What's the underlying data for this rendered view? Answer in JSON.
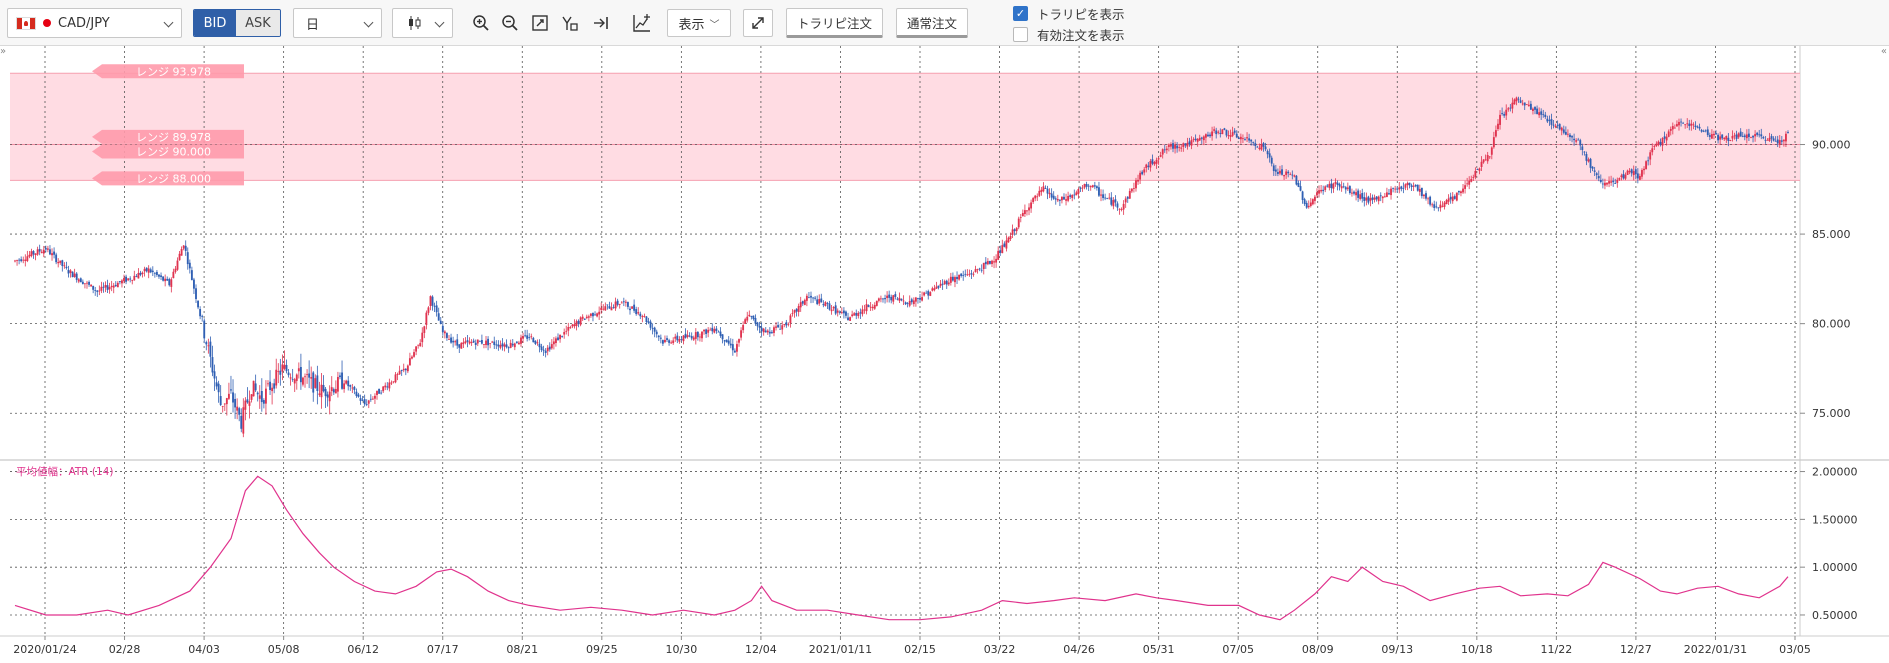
{
  "toolbar": {
    "symbol": "CAD/JPY",
    "bid_label": "BID",
    "ask_label": "ASK",
    "period": "日",
    "display_label": "表示",
    "trapi_order_label": "トラリピ注文",
    "normal_order_label": "通常注文",
    "show_trapi_label": "トラリピを表示",
    "show_trapi_checked": true,
    "show_active_orders_label": "有効注文を表示",
    "show_active_orders_checked": false,
    "icons": [
      "zoom-in-icon",
      "zoom-out-icon",
      "fit-icon",
      "trendline-tool-icon",
      "scroll-to-latest-icon",
      "indicator-add-icon"
    ]
  },
  "colors": {
    "up": "#e0334f",
    "down": "#2f5fb3",
    "range_band": "#ffd6de",
    "range_tag": "#ff9aab",
    "atr_line": "#e0338d"
  },
  "range_labels": [
    "レンジ 93.978",
    "レンジ 89.978",
    "レンジ 90.000",
    "レンジ 88.000"
  ],
  "atr_label": "平均値幅：ATR (14)",
  "chart_data": [
    {
      "type": "candlestick",
      "series_name": "CAD/JPY",
      "ylim": [
        72.5,
        95.5
      ],
      "y_ticks": [
        "90.000",
        "85.000",
        "80.000",
        "75.000"
      ],
      "y_tick_values": [
        90,
        85,
        80,
        75
      ],
      "x_labels": [
        "2020/01/24",
        "02/28",
        "04/03",
        "05/08",
        "06/12",
        "07/17",
        "08/21",
        "09/25",
        "10/30",
        "12/04",
        "2021/01/11",
        "02/15",
        "03/22",
        "04/26",
        "05/31",
        "07/05",
        "08/09",
        "09/13",
        "10/18",
        "11/22",
        "12/27",
        "2022/01/31",
        "03/05"
      ],
      "close_path": [
        [
          0,
          83.5
        ],
        [
          15,
          84.2
        ],
        [
          25,
          83.0
        ],
        [
          40,
          81.8
        ],
        [
          55,
          82.5
        ],
        [
          65,
          83.0
        ],
        [
          75,
          82.2
        ],
        [
          82,
          84.5
        ],
        [
          88,
          81.5
        ],
        [
          95,
          78.0
        ],
        [
          100,
          75.5
        ],
        [
          105,
          76.0
        ],
        [
          110,
          74.5
        ],
        [
          115,
          76.5
        ],
        [
          120,
          75.8
        ],
        [
          130,
          77.5
        ],
        [
          140,
          77.0
        ],
        [
          150,
          76.2
        ],
        [
          160,
          76.8
        ],
        [
          170,
          75.5
        ],
        [
          180,
          76.5
        ],
        [
          190,
          77.5
        ],
        [
          197,
          79.0
        ],
        [
          202,
          81.5
        ],
        [
          208,
          79.5
        ],
        [
          215,
          78.8
        ],
        [
          225,
          79.0
        ],
        [
          240,
          78.8
        ],
        [
          250,
          79.3
        ],
        [
          258,
          78.5
        ],
        [
          265,
          79.3
        ],
        [
          275,
          80.2
        ],
        [
          285,
          80.8
        ],
        [
          295,
          81.2
        ],
        [
          305,
          80.5
        ],
        [
          315,
          79.0
        ],
        [
          325,
          79.2
        ],
        [
          335,
          79.5
        ],
        [
          340,
          79.8
        ],
        [
          350,
          78.5
        ],
        [
          356,
          80.5
        ],
        [
          365,
          79.5
        ],
        [
          375,
          80.0
        ],
        [
          385,
          81.5
        ],
        [
          395,
          81.0
        ],
        [
          405,
          80.3
        ],
        [
          415,
          81.0
        ],
        [
          425,
          81.5
        ],
        [
          435,
          81.2
        ],
        [
          445,
          81.8
        ],
        [
          455,
          82.5
        ],
        [
          465,
          82.8
        ],
        [
          475,
          83.5
        ],
        [
          482,
          84.5
        ],
        [
          492,
          86.5
        ],
        [
          500,
          87.5
        ],
        [
          507,
          86.8
        ],
        [
          515,
          87.2
        ],
        [
          522,
          87.8
        ],
        [
          530,
          87.0
        ],
        [
          538,
          86.5
        ],
        [
          548,
          88.5
        ],
        [
          560,
          89.8
        ],
        [
          575,
          90.2
        ],
        [
          585,
          90.8
        ],
        [
          598,
          90.3
        ],
        [
          608,
          89.8
        ],
        [
          612,
          88.5
        ],
        [
          622,
          88.2
        ],
        [
          628,
          86.5
        ],
        [
          635,
          87.5
        ],
        [
          642,
          87.8
        ],
        [
          652,
          87.2
        ],
        [
          660,
          86.8
        ],
        [
          670,
          87.5
        ],
        [
          680,
          87.8
        ],
        [
          690,
          86.5
        ],
        [
          700,
          87.0
        ],
        [
          710,
          88.5
        ],
        [
          717,
          89.5
        ],
        [
          722,
          91.5
        ],
        [
          730,
          92.5
        ],
        [
          740,
          91.8
        ],
        [
          750,
          91.0
        ],
        [
          760,
          90.2
        ],
        [
          765,
          89.0
        ],
        [
          770,
          88.0
        ],
        [
          778,
          87.8
        ],
        [
          785,
          88.5
        ],
        [
          790,
          88.2
        ],
        [
          795,
          89.5
        ],
        [
          805,
          90.8
        ],
        [
          812,
          91.3
        ],
        [
          820,
          90.8
        ],
        [
          830,
          90.3
        ],
        [
          840,
          90.5
        ],
        [
          850,
          90.4
        ],
        [
          858,
          90.2
        ],
        [
          862,
          90.6
        ]
      ],
      "summary": {
        "start": 83.5,
        "low": 74.5,
        "high": 92.5,
        "end": 90.6
      }
    },
    {
      "type": "line",
      "series_name": "平均値幅：ATR (14)",
      "ylim": [
        0.28,
        2.1
      ],
      "y_ticks": [
        "2.00000",
        "1.50000",
        "1.00000",
        "0.50000"
      ],
      "y_tick_values": [
        2.0,
        1.5,
        1.0,
        0.5
      ],
      "points": [
        [
          0,
          0.6
        ],
        [
          15,
          0.5
        ],
        [
          30,
          0.5
        ],
        [
          45,
          0.55
        ],
        [
          55,
          0.5
        ],
        [
          70,
          0.6
        ],
        [
          85,
          0.75
        ],
        [
          95,
          1.0
        ],
        [
          105,
          1.3
        ],
        [
          112,
          1.8
        ],
        [
          118,
          1.95
        ],
        [
          125,
          1.85
        ],
        [
          132,
          1.6
        ],
        [
          140,
          1.35
        ],
        [
          148,
          1.15
        ],
        [
          155,
          1.0
        ],
        [
          165,
          0.85
        ],
        [
          175,
          0.75
        ],
        [
          185,
          0.72
        ],
        [
          195,
          0.8
        ],
        [
          205,
          0.95
        ],
        [
          212,
          0.98
        ],
        [
          220,
          0.9
        ],
        [
          230,
          0.75
        ],
        [
          240,
          0.65
        ],
        [
          250,
          0.6
        ],
        [
          265,
          0.55
        ],
        [
          280,
          0.58
        ],
        [
          295,
          0.55
        ],
        [
          310,
          0.5
        ],
        [
          325,
          0.55
        ],
        [
          340,
          0.5
        ],
        [
          350,
          0.55
        ],
        [
          358,
          0.65
        ],
        [
          363,
          0.8
        ],
        [
          368,
          0.65
        ],
        [
          380,
          0.55
        ],
        [
          395,
          0.55
        ],
        [
          410,
          0.5
        ],
        [
          425,
          0.45
        ],
        [
          440,
          0.45
        ],
        [
          455,
          0.48
        ],
        [
          470,
          0.55
        ],
        [
          480,
          0.65
        ],
        [
          492,
          0.62
        ],
        [
          505,
          0.65
        ],
        [
          515,
          0.68
        ],
        [
          530,
          0.65
        ],
        [
          545,
          0.72
        ],
        [
          555,
          0.68
        ],
        [
          565,
          0.65
        ],
        [
          580,
          0.6
        ],
        [
          595,
          0.6
        ],
        [
          605,
          0.5
        ],
        [
          615,
          0.45
        ],
        [
          622,
          0.55
        ],
        [
          632,
          0.72
        ],
        [
          640,
          0.9
        ],
        [
          648,
          0.85
        ],
        [
          655,
          1.0
        ],
        [
          665,
          0.85
        ],
        [
          675,
          0.8
        ],
        [
          688,
          0.65
        ],
        [
          700,
          0.72
        ],
        [
          712,
          0.78
        ],
        [
          722,
          0.8
        ],
        [
          732,
          0.7
        ],
        [
          745,
          0.72
        ],
        [
          755,
          0.7
        ],
        [
          765,
          0.82
        ],
        [
          772,
          1.05
        ],
        [
          778,
          1.0
        ],
        [
          790,
          0.88
        ],
        [
          800,
          0.75
        ],
        [
          808,
          0.72
        ],
        [
          818,
          0.78
        ],
        [
          828,
          0.8
        ],
        [
          838,
          0.72
        ],
        [
          848,
          0.68
        ],
        [
          858,
          0.8
        ],
        [
          862,
          0.9
        ]
      ]
    }
  ]
}
